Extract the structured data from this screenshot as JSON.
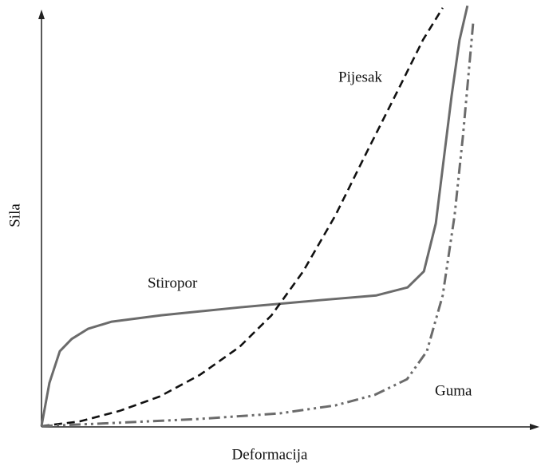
{
  "chart_data": {
    "type": "line",
    "xlabel": "Deformacija",
    "ylabel": "Sila",
    "xlim": [
      0,
      100
    ],
    "ylim": [
      0,
      100
    ],
    "series": [
      {
        "name": "Stiropor",
        "color": "#6b6b6b",
        "style": "solid",
        "x": [
          0,
          1.6,
          3.7,
          6.1,
          9.4,
          14.2,
          24.2,
          40.3,
          56.5,
          67.7,
          74.0,
          77.3,
          79.7,
          81.3,
          82.9,
          84.5,
          86.1
        ],
        "values": [
          0,
          10.2,
          17.7,
          20.6,
          23.0,
          24.7,
          26.2,
          28.1,
          29.8,
          30.9,
          32.8,
          36.6,
          47.9,
          63.0,
          78.1,
          91.3,
          99.4
        ]
      },
      {
        "name": "Pijesak",
        "color": "#111111",
        "style": "dashed",
        "x": [
          0,
          7.7,
          15.8,
          23.9,
          32,
          40,
          46.5,
          52.9,
          59.4,
          65.8,
          72.3,
          77.1,
          81.1
        ],
        "values": [
          0,
          1.1,
          3.6,
          7.0,
          12.1,
          18.7,
          26.2,
          36.6,
          49.8,
          64.9,
          80,
          91.3,
          98.9
        ]
      },
      {
        "name": "Guma",
        "color": "#6b6b6b",
        "style": "dash-dot-dot",
        "x": [
          0,
          15.8,
          32,
          48.1,
          59.4,
          67.4,
          73.9,
          77.9,
          81.1,
          83.5,
          85.2,
          86.8,
          87.3
        ],
        "values": [
          0,
          0.8,
          1.7,
          3.0,
          4.9,
          7.4,
          11.1,
          17.7,
          30.9,
          49.8,
          68.7,
          89.4,
          96
        ]
      }
    ]
  }
}
